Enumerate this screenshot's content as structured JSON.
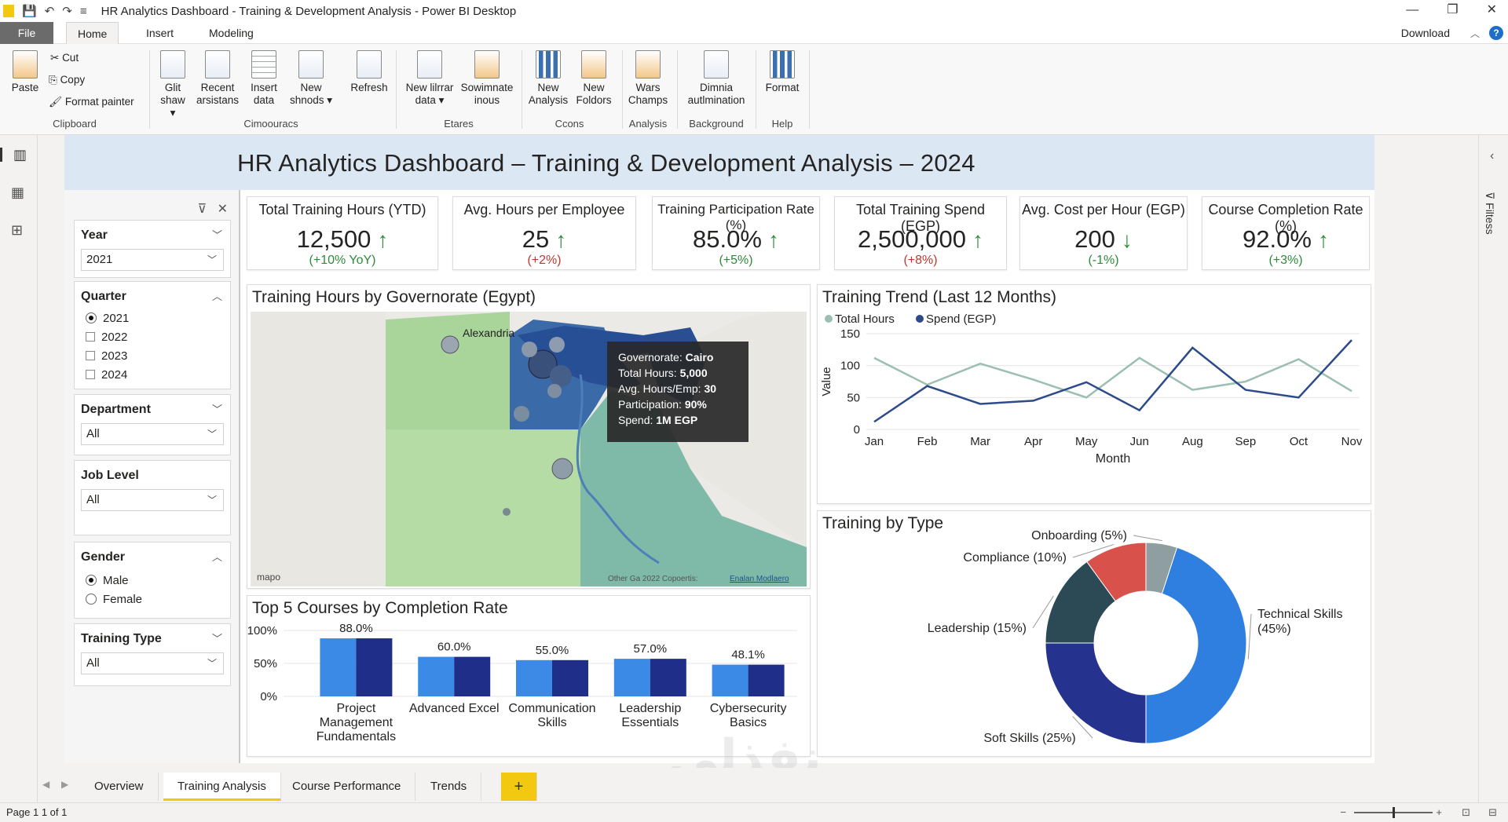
{
  "window": {
    "title": "HR Analytics Dashboard - Training & Development Analysis - Power BI Desktop",
    "minimize": "—",
    "restore": "❐",
    "close": "✕"
  },
  "tabs": {
    "file": "File",
    "home": "Home",
    "insert": "Insert",
    "modeling": "Modeling",
    "download": "Download",
    "help": "?"
  },
  "ribbon": {
    "paste": "Paste",
    "cut": "Cut",
    "copy": "Copy",
    "format_painter": "Format painter",
    "clipboard": "Clipboard",
    "glit1": "Glit",
    "glit2": "shaw ▾",
    "recent1": "Recent",
    "recent2": "arsistans",
    "insert1": "Insert",
    "insert2": "data",
    "newsh1": "New",
    "newsh2": "shnods ▾",
    "group2": "Cimoouracs",
    "refresh": "Refresh",
    "newlib1": "New lilrrar",
    "newlib2": "data ▾",
    "sow1": "Sowimnate",
    "sow2": "inous",
    "group3": "Etares",
    "newan1": "New",
    "newan2": "Analysis",
    "newfo1": "New",
    "newfo2": "Foldors",
    "group4": "Ccons",
    "wars1": "Wars",
    "wars2": "Champs",
    "group5": "Analysis",
    "dim1": "Dimnia",
    "dim2": "autlmination",
    "group6": "Background",
    "format": "Format",
    "group7": "Help"
  },
  "dashboard": {
    "title": "HR Analytics Dashboard – Training & Development Analysis – 2024"
  },
  "filters": {
    "year_label": "Year",
    "year_value": "2021",
    "quarter_label": "Quarter",
    "quarter_options": [
      "2021",
      "2022",
      "2023",
      "2024"
    ],
    "department_label": "Department",
    "department_value": "All",
    "joblevel_label": "Job Level",
    "joblevel_value": "All",
    "gender_label": "Gender",
    "gender_options": [
      "Male",
      "Female"
    ],
    "trainingtype_label": "Training Type",
    "trainingtype_value": "All"
  },
  "kpis": [
    {
      "title": "Total Training Hours (YTD)",
      "value": "12,500",
      "arrow": "↑",
      "change": "(+10% YoY)"
    },
    {
      "title": "Avg. Hours per Employee",
      "value": "25",
      "arrow": "↑",
      "change": "(+2%)"
    },
    {
      "title": "Training Participation Rate (%)",
      "value": "85.0%",
      "arrow": "↑",
      "change": "(+5%)"
    },
    {
      "title": "Total Training Spend (EGP)",
      "value": "2,500,000",
      "arrow": "↑",
      "change": "(+8%)"
    },
    {
      "title": "Avg. Cost per Hour (EGP)",
      "value": "200",
      "arrow": "↓",
      "change": "(-1%)"
    },
    {
      "title": "Course Completion Rate (%)",
      "value": "92.0%",
      "arrow": "↑",
      "change": "(+3%)"
    }
  ],
  "map": {
    "title": "Training Hours by Governorate (Egypt)",
    "place_label": "Alexandria",
    "logo": "mapo",
    "attribution": "Other Ga 2022 Copoertis:",
    "attribution_link": "Enalan Modlaero",
    "tooltip": {
      "gov_label": "Governorate:",
      "gov_value": "Cairo",
      "hours_label": "Total Hours:",
      "hours_value": "5,000",
      "avg_label": "Avg. Hours/Emp:",
      "avg_value": "30",
      "part_label": "Participation:",
      "part_value": "90%",
      "spend_label": "Spend:",
      "spend_value": "1M EGP"
    }
  },
  "chart_data": [
    {
      "type": "line",
      "title": "Training Trend (Last 12 Months)",
      "xlabel": "Month",
      "ylabel": "Value",
      "categories": [
        "Jan",
        "Feb",
        "Mar",
        "Apr",
        "May",
        "Jun",
        "Aug",
        "Sep",
        "Oct",
        "Nov"
      ],
      "ylim": [
        0,
        150
      ],
      "yticks": [
        0,
        50,
        100,
        150
      ],
      "grid": true,
      "legend": "top-left",
      "series": [
        {
          "name": "Total Hours",
          "color": "#9bbfb0",
          "values": [
            112,
            70,
            103,
            78,
            50,
            112,
            62,
            75,
            110,
            60
          ]
        },
        {
          "name": "Spend (EGP)",
          "color": "#2d4a8a",
          "values": [
            12,
            68,
            40,
            45,
            74,
            30,
            128,
            62,
            50,
            140
          ]
        }
      ]
    },
    {
      "type": "bar",
      "title": "Top 5 Courses by Completion Rate",
      "categories": [
        "Project Management Fundamentals",
        "Advanced Excel",
        "Communication Skills",
        "Leadership Essentials",
        "Cybersecurity Basics"
      ],
      "category_lines": [
        [
          "Project",
          "Management",
          "Fundamentals"
        ],
        [
          "Advanced Excel"
        ],
        [
          "Communication",
          "Skills"
        ],
        [
          "Leadership",
          "Essentials"
        ],
        [
          "Cybersecurity",
          "Basics"
        ]
      ],
      "values": [
        88.0,
        60.0,
        55.0,
        57.0,
        48.1
      ],
      "data_labels": [
        "88.0%",
        "60.0%",
        "55.0%",
        "57.0%",
        "48.1%"
      ],
      "yticks": [
        "0%",
        "50%",
        "100%"
      ],
      "ylim": [
        0,
        100
      ],
      "colors": {
        "light": "#3b8ae6",
        "dark": "#1f2e88"
      }
    },
    {
      "type": "pie",
      "title": "Training by Type",
      "labels": [
        "Technical Skills (45%)",
        "Soft Skills (25%)",
        "Leadership (15%)",
        "Compliance (10%)",
        "Onboarding (5%)"
      ],
      "values": [
        45,
        25,
        15,
        10,
        5
      ],
      "colors": [
        "#2f7fe0",
        "#25338f",
        "#2b4a55",
        "#d9514b",
        "#8f9ea0"
      ]
    }
  ],
  "page_tabs": [
    "Overview",
    "Training Analysis",
    "Course Performance",
    "Trends"
  ],
  "page_add": "+",
  "status": {
    "page": "Page 1 1 of 1"
  },
  "rightpane_label": "Filtess",
  "watermark": "نفذلي"
}
